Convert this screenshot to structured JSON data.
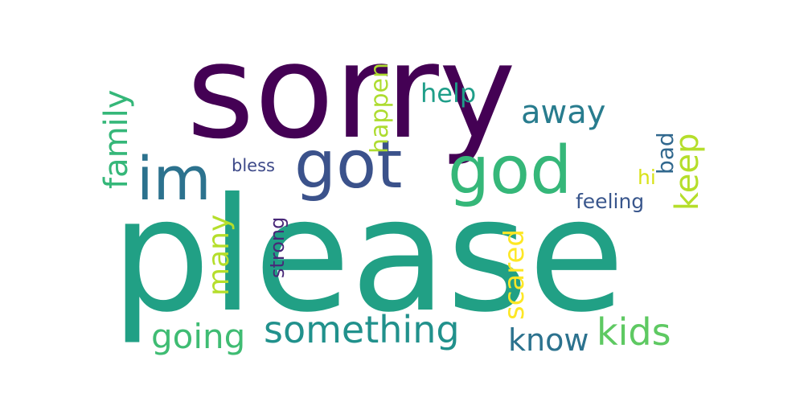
{
  "words": {
    "please": {
      "text": "please",
      "color": "#21a085"
    },
    "sorry": {
      "text": "sorry",
      "color": "#440154"
    },
    "god": {
      "text": "god",
      "color": "#35b779"
    },
    "got": {
      "text": "got",
      "color": "#3b528b"
    },
    "im": {
      "text": "im",
      "color": "#2c728e"
    },
    "something": {
      "text": "something",
      "color": "#21918c"
    },
    "kids": {
      "text": "kids",
      "color": "#5ec962"
    },
    "going": {
      "text": "going",
      "color": "#3fbc73"
    },
    "family": {
      "text": "family",
      "color": "#35b779"
    },
    "away": {
      "text": "away",
      "color": "#287c8e"
    },
    "keep": {
      "text": "keep",
      "color": "#b5de2b"
    },
    "know": {
      "text": "know",
      "color": "#2c728e"
    },
    "many": {
      "text": "many",
      "color": "#b5de2b"
    },
    "scared": {
      "text": "scared",
      "color": "#fde725"
    },
    "happen": {
      "text": "happen",
      "color": "#addc30"
    },
    "help": {
      "text": "help",
      "color": "#1f9e89"
    },
    "bad": {
      "text": "bad",
      "color": "#31688e"
    },
    "feeling": {
      "text": "feeling",
      "color": "#39568c"
    },
    "strong": {
      "text": "strong",
      "color": "#482878"
    },
    "bless": {
      "text": "bless",
      "color": "#3e4a89"
    },
    "hi": {
      "text": "hi",
      "color": "#d8e219"
    }
  }
}
